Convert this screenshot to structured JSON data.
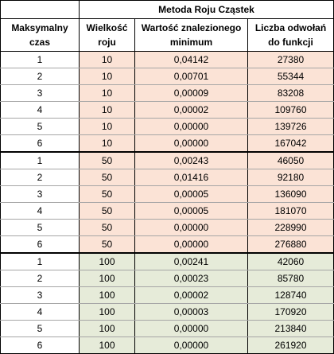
{
  "table": {
    "title": "Metoda Roju Cząstek",
    "headers": {
      "col1_line1": "Maksymalny",
      "col1_line2": "czas",
      "col2_line1": "Wielkość",
      "col2_line2": "roju",
      "col3_line1": "Wartość znalezionego",
      "col3_line2": "minimum",
      "col4_line1": "Liczba odwołań",
      "col4_line2": "do funkcji"
    },
    "groups": [
      {
        "shade": "#fbe3d6",
        "rows": [
          [
            "1",
            "10",
            "0,04142",
            "27380"
          ],
          [
            "2",
            "10",
            "0,00701",
            "55344"
          ],
          [
            "3",
            "10",
            "0,00009",
            "83208"
          ],
          [
            "4",
            "10",
            "0,00002",
            "109760"
          ],
          [
            "5",
            "10",
            "0,00000",
            "139726"
          ],
          [
            "6",
            "10",
            "0,00000",
            "167042"
          ]
        ]
      },
      {
        "shade": "#fbe3d6",
        "rows": [
          [
            "1",
            "50",
            "0,00243",
            "46050"
          ],
          [
            "2",
            "50",
            "0,01416",
            "92180"
          ],
          [
            "3",
            "50",
            "0,00005",
            "136090"
          ],
          [
            "4",
            "50",
            "0,00005",
            "181070"
          ],
          [
            "5",
            "50",
            "0,00000",
            "228990"
          ],
          [
            "6",
            "50",
            "0,00000",
            "276880"
          ]
        ]
      },
      {
        "shade": "#e6ebd9",
        "rows": [
          [
            "1",
            "100",
            "0,00241",
            "42060"
          ],
          [
            "2",
            "100",
            "0,00023",
            "85780"
          ],
          [
            "3",
            "100",
            "0,00002",
            "128740"
          ],
          [
            "4",
            "100",
            "0,00003",
            "170920"
          ],
          [
            "5",
            "100",
            "0,00000",
            "213840"
          ],
          [
            "6",
            "100",
            "0,00000",
            "261920"
          ]
        ]
      }
    ]
  }
}
